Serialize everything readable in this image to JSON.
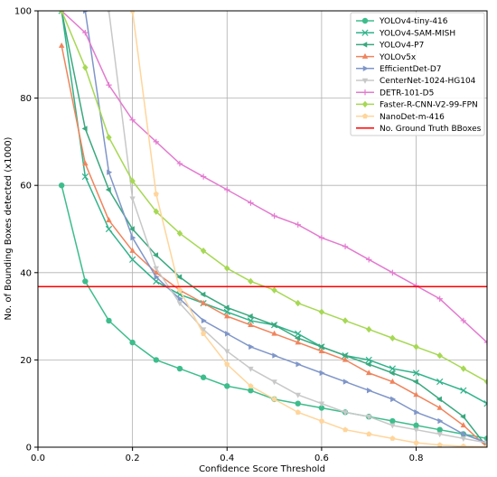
{
  "chart_data": {
    "type": "line",
    "title": "",
    "xlabel": "Confidence Score Threshold",
    "ylabel": "No. of Bounding Boxes detected (x1000)",
    "xlim": [
      0.0,
      0.95
    ],
    "ylim": [
      0,
      100
    ],
    "x_ticks": [
      "0.0",
      "0.2",
      "0.4",
      "0.6",
      "0.8"
    ],
    "x_tick_values": [
      0.0,
      0.2,
      0.4,
      0.6,
      0.8
    ],
    "y_ticks": [
      "0",
      "20",
      "40",
      "60",
      "80",
      "100"
    ],
    "y_tick_values": [
      0,
      20,
      40,
      60,
      80,
      100
    ],
    "grid": true,
    "legend_position": "top-right",
    "series": [
      {
        "name": "YOLOv4-tiny-416",
        "color": "#3dbd8c",
        "marker": "circle",
        "points": [
          [
            0.05,
            60
          ],
          [
            0.1,
            38
          ],
          [
            0.15,
            29
          ],
          [
            0.2,
            24
          ],
          [
            0.25,
            20
          ],
          [
            0.3,
            18
          ],
          [
            0.35,
            16
          ],
          [
            0.4,
            14
          ],
          [
            0.45,
            13
          ],
          [
            0.5,
            11
          ],
          [
            0.55,
            10
          ],
          [
            0.6,
            9
          ],
          [
            0.65,
            8
          ],
          [
            0.7,
            7
          ],
          [
            0.75,
            6
          ],
          [
            0.8,
            5
          ],
          [
            0.85,
            4
          ],
          [
            0.9,
            3
          ],
          [
            0.95,
            2
          ]
        ]
      },
      {
        "name": "YOLOv4-SAM-MISH",
        "color": "#2fb38a",
        "marker": "x",
        "points": [
          [
            0.05,
            100
          ],
          [
            0.1,
            62
          ],
          [
            0.15,
            50
          ],
          [
            0.2,
            43
          ],
          [
            0.25,
            38
          ],
          [
            0.3,
            35
          ],
          [
            0.35,
            33
          ],
          [
            0.4,
            31
          ],
          [
            0.45,
            29
          ],
          [
            0.5,
            28
          ],
          [
            0.55,
            26
          ],
          [
            0.6,
            23
          ],
          [
            0.65,
            21
          ],
          [
            0.7,
            20
          ],
          [
            0.75,
            18
          ],
          [
            0.8,
            17
          ],
          [
            0.85,
            15
          ],
          [
            0.9,
            13
          ],
          [
            0.95,
            10
          ]
        ]
      },
      {
        "name": "YOLOv4-P7",
        "color": "#3aa87f",
        "marker": "triangle-left",
        "points": [
          [
            0.05,
            100
          ],
          [
            0.1,
            73
          ],
          [
            0.15,
            59
          ],
          [
            0.2,
            50
          ],
          [
            0.25,
            44
          ],
          [
            0.3,
            39
          ],
          [
            0.35,
            35
          ],
          [
            0.4,
            32
          ],
          [
            0.45,
            30
          ],
          [
            0.5,
            28
          ],
          [
            0.55,
            25
          ],
          [
            0.6,
            23
          ],
          [
            0.65,
            21
          ],
          [
            0.7,
            19
          ],
          [
            0.75,
            17
          ],
          [
            0.8,
            15
          ],
          [
            0.85,
            11
          ],
          [
            0.9,
            7
          ],
          [
            0.95,
            0
          ]
        ]
      },
      {
        "name": "YOLOv5x",
        "color": "#f0845c",
        "marker": "triangle-up",
        "points": [
          [
            0.05,
            92
          ],
          [
            0.1,
            65
          ],
          [
            0.15,
            52
          ],
          [
            0.2,
            45
          ],
          [
            0.25,
            40
          ],
          [
            0.3,
            36
          ],
          [
            0.35,
            33
          ],
          [
            0.4,
            30
          ],
          [
            0.45,
            28
          ],
          [
            0.5,
            26
          ],
          [
            0.55,
            24
          ],
          [
            0.6,
            22
          ],
          [
            0.65,
            20
          ],
          [
            0.7,
            17
          ],
          [
            0.75,
            15
          ],
          [
            0.8,
            12
          ],
          [
            0.85,
            9
          ],
          [
            0.9,
            5
          ],
          [
            0.95,
            0
          ]
        ]
      },
      {
        "name": "EfficientDet-D7",
        "color": "#7f96c9",
        "marker": "triangle-right",
        "points": [
          [
            0.1,
            100
          ],
          [
            0.15,
            63
          ],
          [
            0.2,
            48
          ],
          [
            0.25,
            39
          ],
          [
            0.3,
            34
          ],
          [
            0.35,
            29
          ],
          [
            0.4,
            26
          ],
          [
            0.45,
            23
          ],
          [
            0.5,
            21
          ],
          [
            0.55,
            19
          ],
          [
            0.6,
            17
          ],
          [
            0.65,
            15
          ],
          [
            0.7,
            13
          ],
          [
            0.75,
            11
          ],
          [
            0.8,
            8
          ],
          [
            0.85,
            6
          ],
          [
            0.9,
            3
          ],
          [
            0.95,
            1
          ]
        ]
      },
      {
        "name": "CenterNet-1024-HG104",
        "color": "#c8c8c8",
        "marker": "triangle-down",
        "points": [
          [
            0.15,
            100
          ],
          [
            0.2,
            57
          ],
          [
            0.25,
            41
          ],
          [
            0.3,
            33
          ],
          [
            0.35,
            27
          ],
          [
            0.4,
            22
          ],
          [
            0.45,
            18
          ],
          [
            0.5,
            15
          ],
          [
            0.55,
            12
          ],
          [
            0.6,
            10
          ],
          [
            0.65,
            8
          ],
          [
            0.7,
            7
          ],
          [
            0.75,
            5
          ],
          [
            0.8,
            4
          ],
          [
            0.85,
            3
          ],
          [
            0.9,
            2
          ],
          [
            0.95,
            1
          ]
        ]
      },
      {
        "name": "DETR-101-D5",
        "color": "#e37bd0",
        "marker": "plus",
        "points": [
          [
            0.05,
            100
          ],
          [
            0.1,
            95
          ],
          [
            0.15,
            83
          ],
          [
            0.2,
            75
          ],
          [
            0.25,
            70
          ],
          [
            0.3,
            65
          ],
          [
            0.35,
            62
          ],
          [
            0.4,
            59
          ],
          [
            0.45,
            56
          ],
          [
            0.5,
            53
          ],
          [
            0.55,
            51
          ],
          [
            0.6,
            48
          ],
          [
            0.65,
            46
          ],
          [
            0.7,
            43
          ],
          [
            0.75,
            40
          ],
          [
            0.8,
            37
          ],
          [
            0.85,
            34
          ],
          [
            0.9,
            29
          ],
          [
            0.95,
            24
          ]
        ]
      },
      {
        "name": "Faster-R-CNN-V2-99-FPN",
        "color": "#a6d854",
        "marker": "diamond",
        "points": [
          [
            0.05,
            100
          ],
          [
            0.1,
            87
          ],
          [
            0.15,
            71
          ],
          [
            0.2,
            61
          ],
          [
            0.25,
            54
          ],
          [
            0.3,
            49
          ],
          [
            0.35,
            45
          ],
          [
            0.4,
            41
          ],
          [
            0.45,
            38
          ],
          [
            0.5,
            36
          ],
          [
            0.55,
            33
          ],
          [
            0.6,
            31
          ],
          [
            0.65,
            29
          ],
          [
            0.7,
            27
          ],
          [
            0.75,
            25
          ],
          [
            0.8,
            23
          ],
          [
            0.85,
            21
          ],
          [
            0.9,
            18
          ],
          [
            0.95,
            15
          ]
        ]
      },
      {
        "name": "NanoDet-m-416",
        "color": "#ffd59b",
        "marker": "pentagon",
        "points": [
          [
            0.2,
            100
          ],
          [
            0.25,
            58
          ],
          [
            0.3,
            36
          ],
          [
            0.35,
            26
          ],
          [
            0.4,
            19
          ],
          [
            0.45,
            14
          ],
          [
            0.5,
            11
          ],
          [
            0.55,
            8
          ],
          [
            0.6,
            6
          ],
          [
            0.65,
            4
          ],
          [
            0.7,
            3
          ],
          [
            0.75,
            2
          ],
          [
            0.8,
            1
          ],
          [
            0.85,
            0.5
          ],
          [
            0.9,
            0.2
          ],
          [
            0.95,
            0.1
          ]
        ]
      }
    ],
    "reference_line": {
      "name": "No. Ground Truth BBoxes",
      "color": "#ff0000",
      "y": 36.8
    }
  }
}
